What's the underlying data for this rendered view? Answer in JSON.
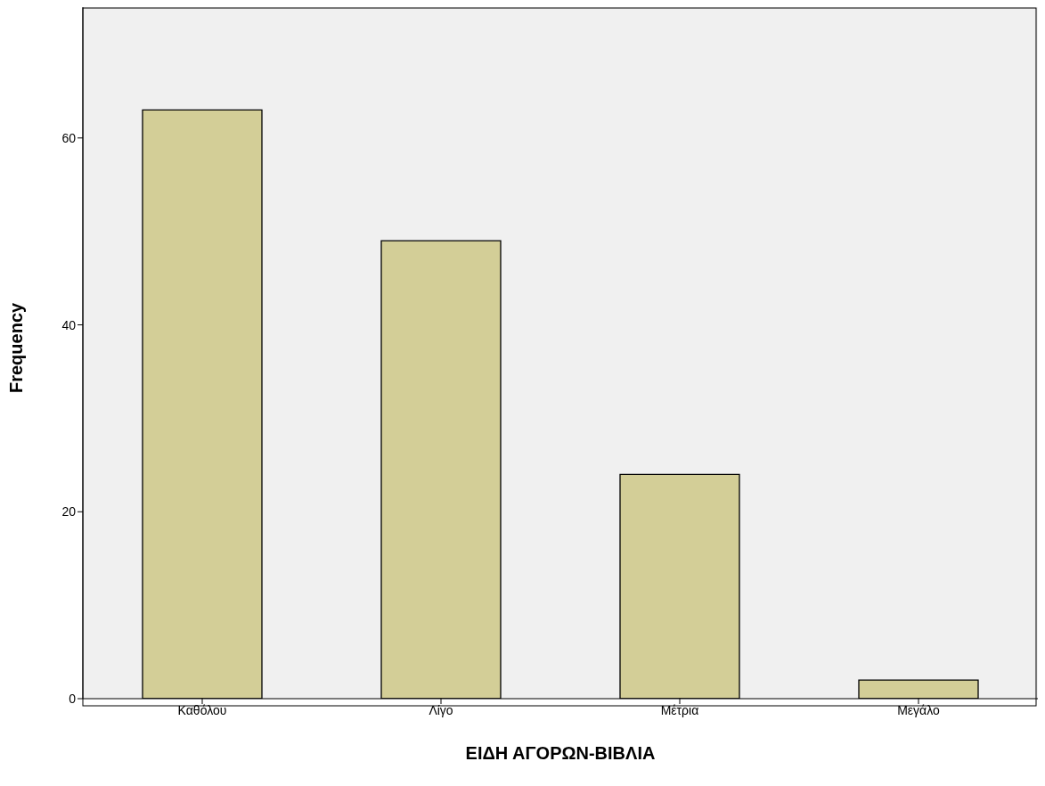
{
  "chart_data": {
    "type": "bar",
    "xlabel": "ΕΙΔΗ ΑΓΟΡΩΝ-ΒΙΒΛΙΑ",
    "ylabel": "Frequency",
    "categories": [
      "Καθόλου",
      "Λίγο",
      "Μέτρια",
      "Μεγάλο"
    ],
    "values": [
      63,
      49,
      24,
      2
    ],
    "color": "#d3ce97",
    "ylim": [
      0,
      74
    ],
    "yticks": [
      0,
      20,
      40,
      60
    ],
    "grid": false
  }
}
